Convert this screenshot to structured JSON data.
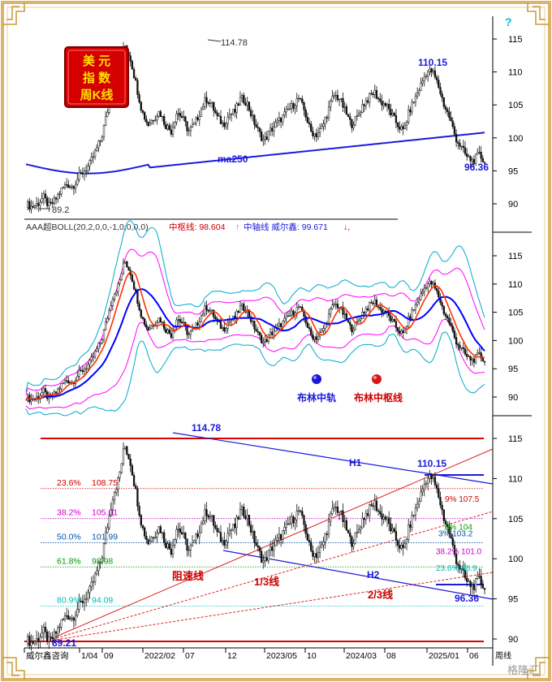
{
  "badge": {
    "line1": "美 元",
    "line2": "指 数",
    "line3": "周K线"
  },
  "panel1": {
    "y_ticks": [
      "115",
      "110",
      "105",
      "100",
      "95",
      "90"
    ],
    "high_label": "114.78",
    "peak2_label": "110.15",
    "low_label": "89.2",
    "last_label": "96.36",
    "ma_label": "ma250",
    "help_mark": "?"
  },
  "panel2": {
    "header_prefix": "AAA超BOLL(20,2,0,0,-1,0,0,0,0)",
    "header_mid_label": "中枢线: 98.604",
    "header_axis_label": "中轴线 威尔鑫: 99.671",
    "y_ticks": [
      "115",
      "110",
      "105",
      "100",
      "95",
      "90"
    ],
    "legend_blue": "布林中轨",
    "legend_red": "布林中枢线",
    "colors": {
      "blue": "#0000ff",
      "red": "#ff0000",
      "outer": "#00aacc",
      "magenta": "#ff00ff"
    }
  },
  "panel3": {
    "y_ticks": [
      "115",
      "110",
      "105",
      "100",
      "95",
      "90"
    ],
    "high_label": "114.78",
    "peak2_label": "110.15",
    "low_label": "89.21",
    "last_label": "96.36",
    "h1_label": "H1",
    "h2_label": "H2",
    "resist_label": "阻速线",
    "third_label": "1/3线",
    "two_third_label": "2/3线",
    "fib_left": [
      {
        "pct": "23.6%",
        "val": "108.75",
        "color": "#cc0000"
      },
      {
        "pct": "38.2%",
        "val": "105.01",
        "color": "#cc00cc"
      },
      {
        "pct": "50.0%",
        "val": "101.99",
        "color": "#0055aa"
      },
      {
        "pct": "61.8%",
        "val": "98.98",
        "color": "#009900"
      },
      {
        "pct": "80.9%",
        "val": "94.09",
        "color": "#00bbbb"
      }
    ],
    "fib_right": [
      {
        "text": "9% 107.5",
        "color": "#cc0000"
      },
      {
        "text": "8% 104",
        "color": "#00aa00"
      },
      {
        "text": "3% 103.2",
        "color": "#0055aa"
      },
      {
        "text": "38.2% 101.0",
        "color": "#cc00cc"
      },
      {
        "text": "23.6% 98.9",
        "color": "#00bbbb"
      }
    ]
  },
  "x_axis": {
    "labels": [
      "威尔鑫咨询",
      "1/04",
      "09",
      "2022/02",
      "07",
      "12",
      "2023/05",
      "10",
      "2024/03",
      "08",
      "2025/01",
      "06"
    ],
    "period": "周线"
  },
  "watermark": "格隆汇",
  "chart_data": {
    "type": "candlestick",
    "title": "美元指数周K线",
    "y_range": [
      87,
      117
    ],
    "key_points": [
      {
        "label": "low",
        "value": 89.21
      },
      {
        "label": "high",
        "value": 114.78
      },
      {
        "label": "second_peak",
        "value": 110.15
      },
      {
        "label": "last",
        "value": 96.36
      }
    ],
    "x_labels": [
      "1/04",
      "09",
      "2022/02",
      "07",
      "12",
      "2023/05",
      "10",
      "2024/03",
      "08",
      "2025/01",
      "06"
    ],
    "fibonacci_retracements": [
      {
        "ratio": "23.6%",
        "value": 108.75
      },
      {
        "ratio": "38.2%",
        "value": 105.01
      },
      {
        "ratio": "50.0%",
        "value": 101.99
      },
      {
        "ratio": "61.8%",
        "value": 98.98
      },
      {
        "ratio": "80.9%",
        "value": 94.09
      }
    ],
    "close_series": [
      90,
      89.5,
      90,
      91,
      89.6,
      90.5,
      92,
      93,
      92.6,
      94,
      95,
      96,
      98,
      100,
      104,
      108,
      110,
      114.2,
      112,
      108,
      104,
      102,
      103,
      104,
      102,
      101,
      104,
      103,
      101,
      102,
      104,
      106,
      105,
      103,
      102,
      103.5,
      104,
      106,
      105.5,
      103,
      101,
      99.5,
      101,
      102,
      103,
      104,
      105,
      106,
      104,
      101,
      100.5,
      101.5,
      104,
      106.5,
      106,
      104,
      102,
      103,
      105,
      106,
      107,
      105.5,
      105,
      103.5,
      102,
      101,
      104,
      106,
      108,
      110,
      110.1,
      108,
      105,
      103,
      100,
      98.5,
      97,
      96.5,
      97.5,
      96.36
    ],
    "ma250": {
      "name": "ma250"
    },
    "bollinger": {
      "header": "AAA超BOLL(20,2,0,0,-1,0,0,0,0)",
      "middle": 99.671,
      "pivot": 98.604
    }
  }
}
